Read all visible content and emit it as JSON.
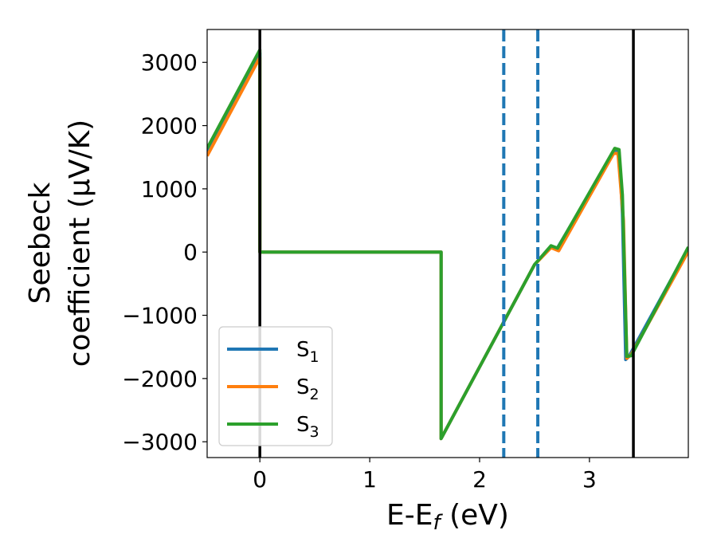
{
  "chart_data": {
    "type": "line",
    "xlabel": "E-E",
    "xlabel_sub": "f",
    "xlabel_unit": " (eV)",
    "ylabel_line1": "Seebeck",
    "ylabel_line2": "coefficient  (μV/K)",
    "xlim": [
      -0.48,
      3.9
    ],
    "ylim": [
      -3250,
      3520
    ],
    "xticks": [
      0,
      1,
      2,
      3
    ],
    "xtick_labels": [
      "0",
      "1",
      "2",
      "3"
    ],
    "yticks": [
      -3000,
      -2000,
      -1000,
      0,
      1000,
      2000,
      3000
    ],
    "ytick_labels": [
      "−3000",
      "−2000",
      "−1000",
      "0",
      "1000",
      "2000",
      "3000"
    ],
    "vlines": [
      {
        "x": 0.0,
        "style": "solid",
        "color": "#000000"
      },
      {
        "x": 3.4,
        "style": "solid",
        "color": "#000000"
      },
      {
        "x": 2.22,
        "style": "dashed",
        "color": "#1f77b4"
      },
      {
        "x": 2.53,
        "style": "dashed",
        "color": "#1f77b4"
      }
    ],
    "legend_position": "lower-left",
    "series": [
      {
        "name": "S",
        "sub": "1",
        "color": "#1f77b4",
        "x": [
          -0.48,
          0.0,
          0.0,
          1.65,
          1.65,
          2.5,
          2.65,
          2.7,
          3.24,
          3.27,
          3.3,
          3.33,
          3.36,
          3.9
        ],
        "y": [
          1580,
          3150,
          0,
          0,
          -2950,
          -200,
          90,
          40,
          1620,
          1580,
          600,
          -1700,
          -1650,
          60
        ]
      },
      {
        "name": "S",
        "sub": "2",
        "color": "#ff7f0e",
        "x": [
          -0.48,
          0.0,
          0.0,
          1.65,
          1.65,
          2.5,
          2.65,
          2.72,
          3.22,
          3.26,
          3.31,
          3.34,
          3.38,
          3.9
        ],
        "y": [
          1520,
          3080,
          0,
          0,
          -2950,
          -200,
          70,
          20,
          1560,
          1560,
          500,
          -1680,
          -1620,
          10
        ]
      },
      {
        "name": "S",
        "sub": "3",
        "color": "#2ca02c",
        "x": [
          -0.48,
          0.0,
          0.0,
          1.65,
          1.65,
          2.5,
          2.65,
          2.71,
          3.23,
          3.27,
          3.3,
          3.34,
          3.38,
          3.9
        ],
        "y": [
          1640,
          3200,
          0,
          0,
          -2950,
          -200,
          100,
          60,
          1640,
          1620,
          900,
          -1650,
          -1640,
          80
        ]
      }
    ]
  }
}
